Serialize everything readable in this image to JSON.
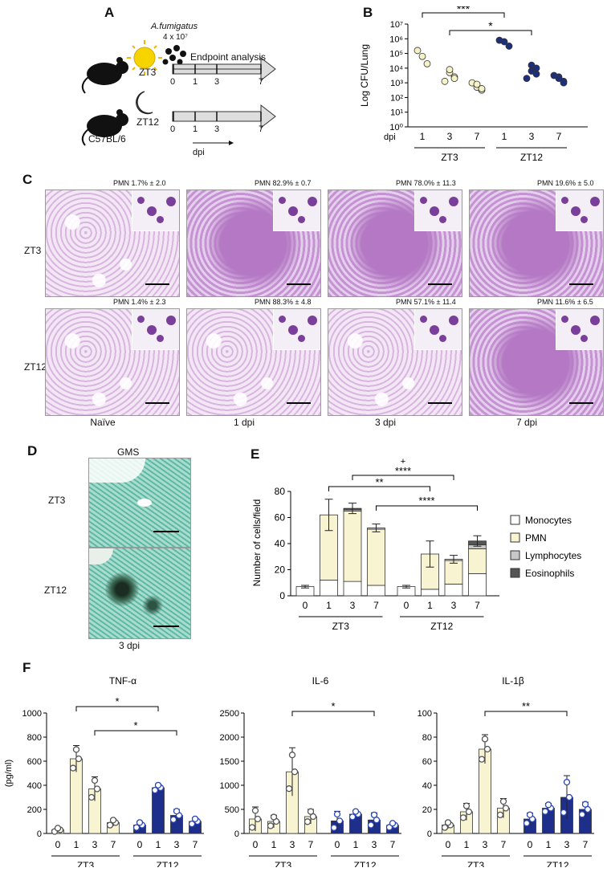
{
  "panels": {
    "A": "A",
    "B": "B",
    "C": "C",
    "D": "D",
    "E": "E",
    "F": "F"
  },
  "panelA": {
    "organism": "A.fumigatus",
    "dose": "4 x 10⁷",
    "endpoint": "Endpoint analysis",
    "zt3": "ZT3",
    "zt12": "ZT12",
    "strain": "C57BL/6",
    "dpi": "dpi",
    "ticks": [
      "0",
      "1",
      "3",
      "7"
    ]
  },
  "panelB": {
    "chart_data": {
      "type": "scatter",
      "ylabel": "Log CFU/Lung",
      "yticks": [
        "10⁰",
        "10¹",
        "10²",
        "10³",
        "10⁴",
        "10⁵",
        "10⁶",
        "10⁷"
      ],
      "ylim": [
        0,
        7
      ],
      "x_label": "dpi",
      "categories": [
        "1",
        "3",
        "7",
        "1",
        "3",
        "7"
      ],
      "groups": [
        "ZT3",
        "ZT12"
      ],
      "series": [
        {
          "name": "ZT3",
          "color": "#f6f2c8",
          "points": [
            [
              1,
              4.8
            ],
            [
              1,
              4.3
            ],
            [
              1,
              5.2
            ],
            [
              3,
              3.7
            ],
            [
              3,
              3.4
            ],
            [
              3,
              3.1
            ],
            [
              3,
              3.9
            ],
            [
              3,
              3.3
            ],
            [
              7,
              2.7
            ],
            [
              7,
              2.5
            ],
            [
              7,
              3.0
            ],
            [
              7,
              2.9
            ],
            [
              7,
              2.6
            ]
          ]
        },
        {
          "name": "ZT12",
          "color": "#1d2f7a",
          "points": [
            [
              1,
              5.8
            ],
            [
              1,
              5.5
            ],
            [
              1,
              5.9
            ],
            [
              3,
              4.2
            ],
            [
              3,
              3.6
            ],
            [
              3,
              3.3
            ],
            [
              3,
              3.8
            ],
            [
              3,
              4.0
            ],
            [
              7,
              3.4
            ],
            [
              7,
              3.1
            ],
            [
              7,
              3.5
            ],
            [
              7,
              3.3
            ],
            [
              7,
              3.0
            ]
          ]
        }
      ],
      "sig": [
        "***",
        "*"
      ]
    }
  },
  "panelC": {
    "rows": [
      "ZT3",
      "ZT12"
    ],
    "cols": [
      "Naïve",
      "1 dpi",
      "3 dpi",
      "7 dpi"
    ],
    "pmn": [
      [
        "PMN 1.7% ± 2.0",
        "PMN 82.9% ± 0.7",
        "PMN 78.0% ± 11.3",
        "PMN 19.6% ± 5.0"
      ],
      [
        "PMN 1.4% ± 2.3",
        "PMN 88.3% ± 4.8",
        "PMN 57.1% ± 11.4",
        "PMN 11.6% ± 6.5"
      ]
    ]
  },
  "panelD": {
    "title": "GMS",
    "rows": [
      "ZT3",
      "ZT12"
    ],
    "xlabel": "3 dpi"
  },
  "panelE": {
    "chart_data": {
      "type": "bar",
      "ylabel": "Number of cells/field",
      "ylim": [
        0,
        80
      ],
      "yticks": [
        "0",
        "20",
        "40",
        "60",
        "80"
      ],
      "categories": [
        "0",
        "1",
        "3",
        "7",
        "0",
        "1",
        "3",
        "7"
      ],
      "groups": [
        "ZT3",
        "ZT12"
      ],
      "series": [
        {
          "name": "Monocytes",
          "color": "#ffffff",
          "values": [
            7,
            12,
            11,
            8,
            7,
            5,
            9,
            17
          ]
        },
        {
          "name": "PMN",
          "color": "#f8f3d0",
          "values": [
            0,
            50,
            54,
            43,
            0,
            27,
            18,
            19
          ]
        },
        {
          "name": "Lymphocytes",
          "color": "#c8c8c8",
          "values": [
            0,
            0,
            1,
            1,
            0,
            0,
            1,
            3
          ]
        },
        {
          "name": "Eosinophils",
          "color": "#555555",
          "values": [
            0,
            0,
            1,
            0,
            0,
            0,
            0,
            3
          ]
        }
      ],
      "errors": [
        1,
        12,
        4,
        3,
        1,
        10,
        3,
        4
      ],
      "sig": [
        "+",
        "****",
        "**",
        "****"
      ]
    }
  },
  "panelF": {
    "ylabel": "(pg/ml)",
    "charts": [
      {
        "title": "TNF-α",
        "ylim": [
          0,
          1000
        ],
        "yticks": [
          "0",
          "200",
          "400",
          "600",
          "800",
          "1000"
        ],
        "values": [
          30,
          620,
          370,
          90,
          70,
          380,
          150,
          100
        ],
        "errors": [
          20,
          110,
          100,
          30,
          30,
          30,
          50,
          30
        ],
        "sig": [
          "*",
          "*"
        ]
      },
      {
        "title": "IL-6",
        "ylim": [
          0,
          2500
        ],
        "yticks": [
          "0",
          "500",
          "1000",
          "1500",
          "2000",
          "2500"
        ],
        "values": [
          300,
          250,
          1280,
          350,
          260,
          400,
          280,
          170
        ],
        "errors": [
          250,
          130,
          500,
          150,
          200,
          80,
          150,
          60
        ],
        "sig": [
          "*"
        ]
      },
      {
        "title": "IL-1β",
        "ylim": [
          0,
          100
        ],
        "yticks": [
          "0",
          "20",
          "40",
          "60",
          "80",
          "100"
        ],
        "values": [
          7,
          18,
          70,
          21,
          12,
          21,
          30,
          20
        ],
        "errors": [
          3,
          7,
          12,
          8,
          5,
          4,
          18,
          6
        ],
        "sig": [
          "**"
        ]
      }
    ],
    "categories": [
      "0",
      "1",
      "3",
      "7",
      "0",
      "1",
      "3",
      "7"
    ],
    "groups": [
      "ZT3",
      "ZT12"
    ],
    "colors": {
      "zt3": "#f8f3d0",
      "zt12": "#1d2f8a",
      "dots": "#2a46b8"
    }
  }
}
